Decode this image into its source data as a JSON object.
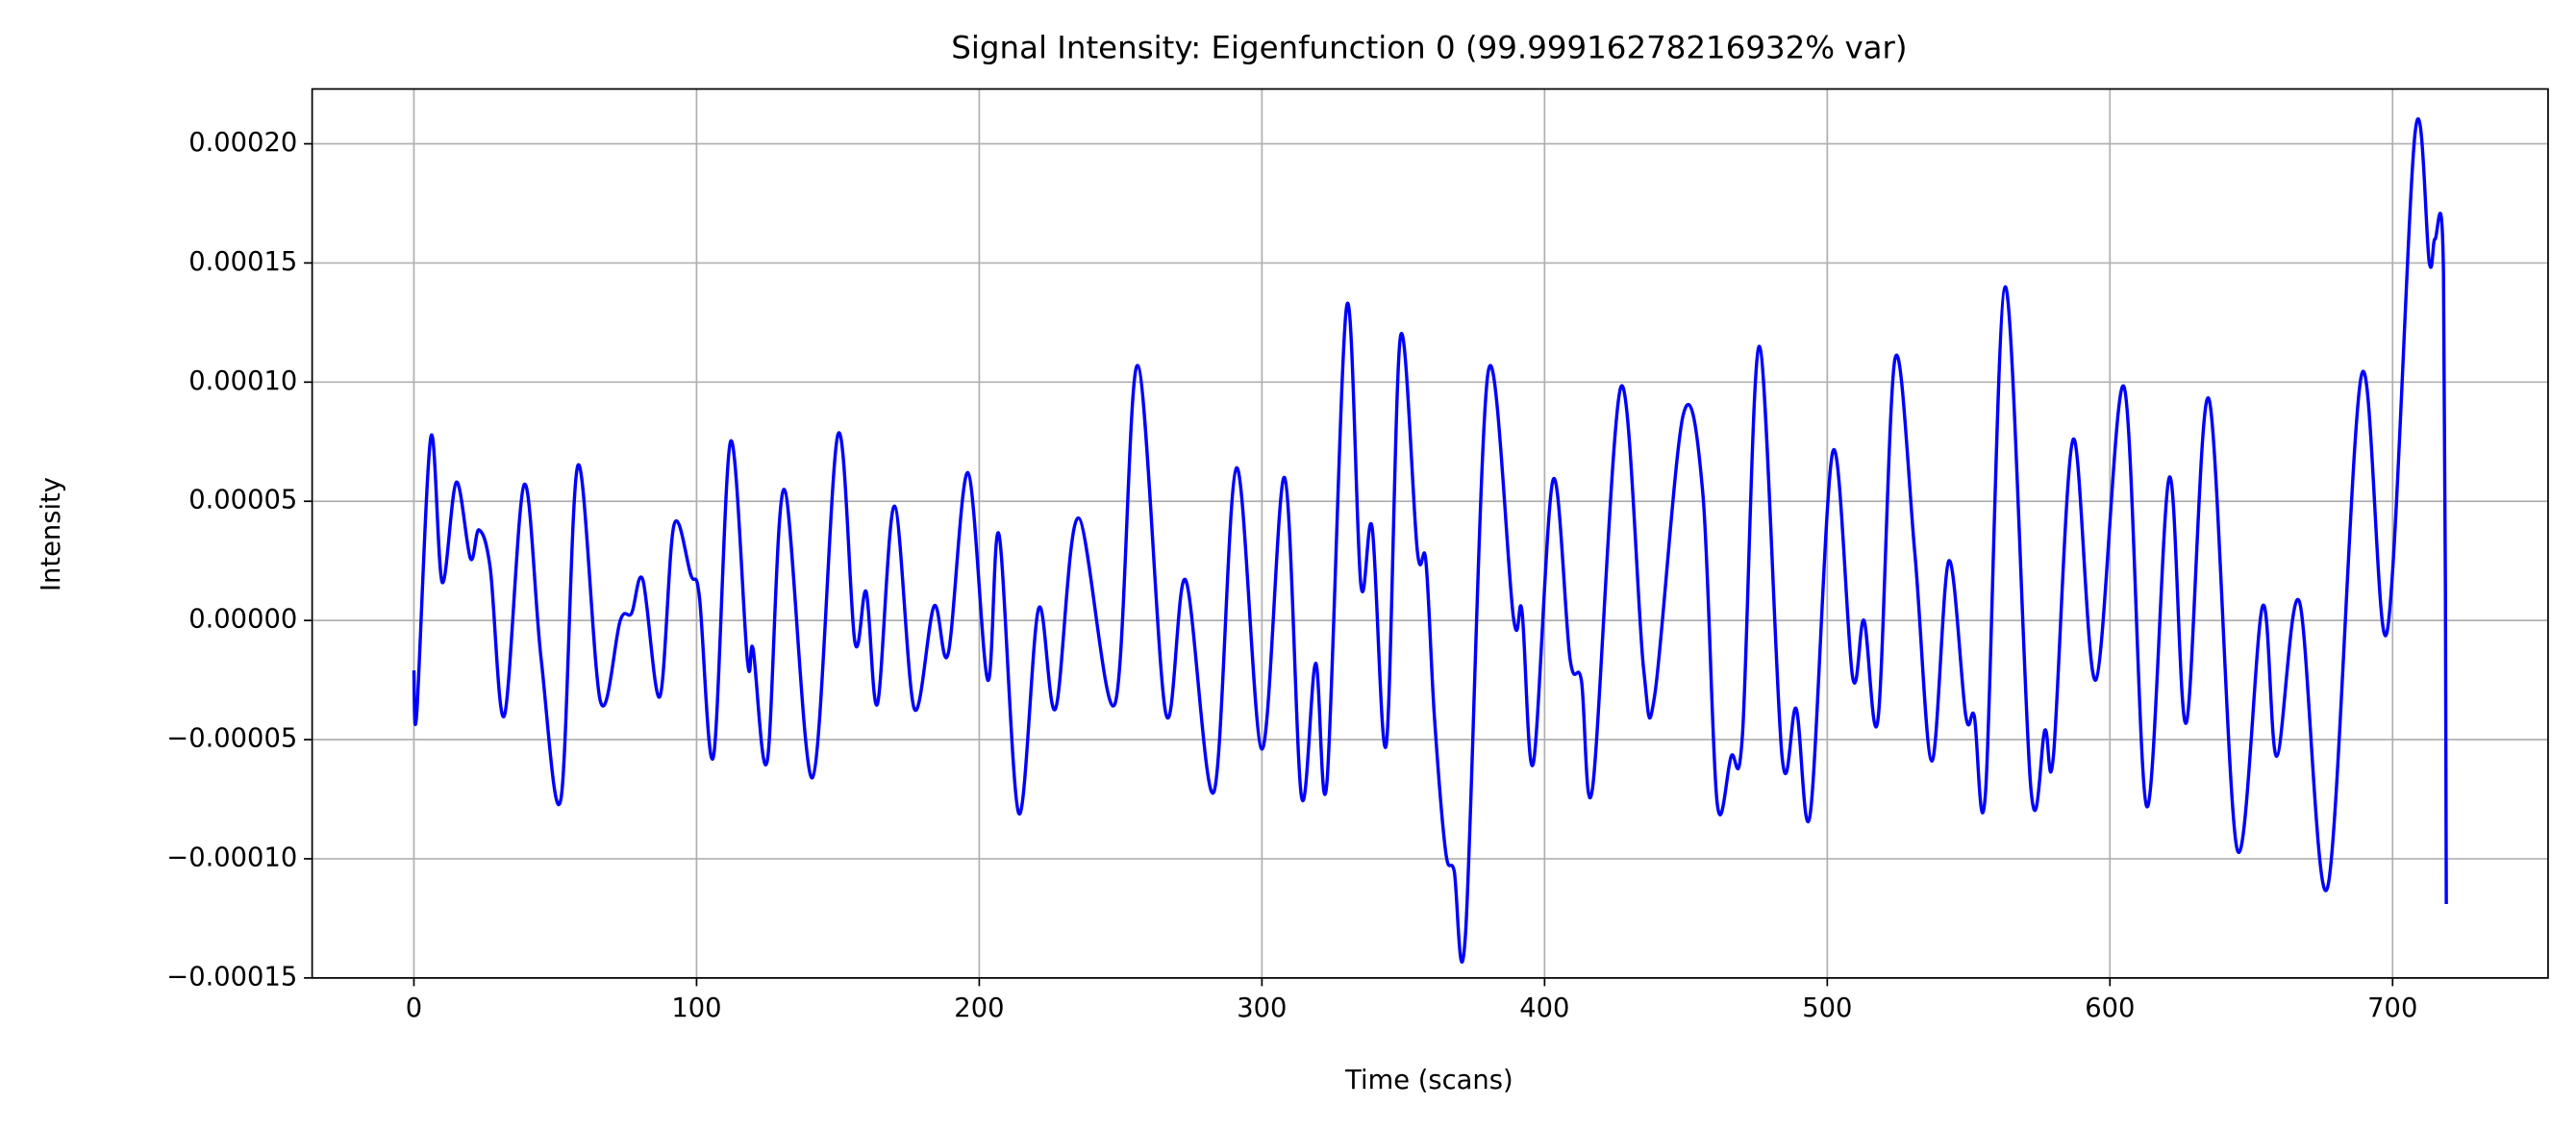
{
  "chart_data": {
    "type": "line",
    "title": "Signal Intensity: Eigenfunction 0 (99.99916278216932% var)",
    "x_label": "Time (scans)",
    "y_label": "Intensity",
    "grid": true,
    "xlim": [
      -36,
      755
    ],
    "ylim": [
      -0.00015,
      0.000223
    ],
    "xticks": [
      0,
      100,
      200,
      300,
      400,
      500,
      600,
      700
    ],
    "yticks": [
      {
        "value": -0.00015,
        "label": "−0.00015"
      },
      {
        "value": -0.0001,
        "label": "−0.00010"
      },
      {
        "value": -5e-05,
        "label": "−0.00005"
      },
      {
        "value": 0,
        "label": "0.00000"
      },
      {
        "value": 5e-05,
        "label": "0.00005"
      },
      {
        "value": 0.0001,
        "label": "0.00010"
      },
      {
        "value": 0.00015,
        "label": "0.00015"
      },
      {
        "value": 0.0002,
        "label": "0.00020"
      }
    ],
    "x": [
      0,
      1,
      6,
      10,
      15,
      20,
      23,
      27,
      32,
      39,
      45,
      52,
      58,
      66,
      73,
      77,
      81,
      87,
      92,
      98,
      101,
      106,
      112,
      118,
      120,
      125,
      131,
      141,
      150,
      156,
      160,
      164,
      170,
      177,
      184,
      189,
      196,
      203,
      207,
      214,
      221,
      227,
      235,
      248,
      256,
      266,
      273,
      283,
      291,
      300,
      308,
      314,
      319,
      323,
      330,
      335,
      339,
      344,
      349,
      355,
      358,
      361,
      365,
      368,
      372,
      380,
      389,
      392,
      396,
      403,
      409,
      413,
      417,
      427,
      435,
      439,
      449,
      456,
      461,
      466,
      470,
      476,
      484,
      489,
      494,
      502,
      509,
      513,
      518,
      524,
      531,
      537,
      543,
      549,
      552,
      556,
      563,
      572,
      577,
      580,
      587,
      595,
      605,
      613,
      621,
      627,
      635,
      645,
      654,
      659,
      667,
      677,
      689,
      698,
      708,
      713,
      715,
      718,
      719
    ],
    "series": [
      {
        "name": "Eigenfunction 0",
        "color": "#0000ff",
        "values": [
          -2.1e-05,
          -3.9e-05,
          7.7e-05,
          1.6e-05,
          5.8e-05,
          2.6e-05,
          3.8e-05,
          2.2e-05,
          -4e-05,
          5.7e-05,
          -1.6e-05,
          -7.5e-05,
          6.5e-05,
          -3.4e-05,
          0.0,
          3e-06,
          1.7e-05,
          -3.2e-05,
          4e-05,
          1.9e-05,
          1e-05,
          -5.7e-05,
          7.5e-05,
          -1.7e-05,
          -1.2e-05,
          -5.9e-05,
          5.5e-05,
          -6.6e-05,
          7.8e-05,
          -9e-06,
          1.2e-05,
          -3.5e-05,
          4.8e-05,
          -3.7e-05,
          6e-06,
          -1.4e-05,
          6.2e-05,
          -2.5e-05,
          3.6e-05,
          -8.1e-05,
          5e-06,
          -3.7e-05,
          4.3e-05,
          -3.5e-05,
          0.000107,
          -3.9e-05,
          1.7e-05,
          -7.2e-05,
          6.4e-05,
          -5.4e-05,
          6e-05,
          -7.4e-05,
          -1.8e-05,
          -6.8e-05,
          0.000132,
          1.5e-05,
          3.9e-05,
          -5.2e-05,
          0.000119,
          2.9e-05,
          2.5e-05,
          -4e-05,
          -9.7e-05,
          -0.000105,
          -0.000132,
          0.000104,
          1e-06,
          4e-06,
          -6e-05,
          5.9e-05,
          -1.6e-05,
          -2.5e-05,
          -7e-05,
          9.8e-05,
          -2e-05,
          -3.1e-05,
          8.6e-05,
          5.3e-05,
          -7.6e-05,
          -5.7e-05,
          -4.8e-05,
          0.000115,
          -5.7e-05,
          -3.7e-05,
          -8.1e-05,
          7.1e-05,
          -2.4e-05,
          0.0,
          -4.1e-05,
          0.00011,
          2.8e-05,
          -5.9e-05,
          2.5e-05,
          -4e-05,
          -4e-05,
          -7.2e-05,
          0.00014,
          -7e-05,
          -4.6e-05,
          -5.7e-05,
          7.6e-05,
          -2.5e-05,
          9.8e-05,
          -7.8e-05,
          6e-05,
          -4.3e-05,
          9.3e-05,
          -9.6e-05,
          6e-06,
          -5.7e-05,
          8e-06,
          -0.000112,
          0.000103,
          -5e-06,
          0.000205,
          0.00015,
          0.00016,
          0.000146,
          -0.000119
        ]
      }
    ]
  }
}
